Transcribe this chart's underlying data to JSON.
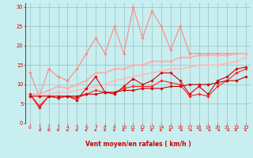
{
  "bg_color": "#c8eef0",
  "grid_color": "#a0c8c8",
  "xlabel": "Vent moyen/en rafales ( km/h )",
  "xlabel_color": "#cc0000",
  "tick_color": "#cc0000",
  "ylim": [
    0,
    31
  ],
  "yticks": [
    0,
    5,
    10,
    15,
    20,
    25,
    30
  ],
  "xlim": [
    -0.5,
    23.5
  ],
  "xticks": [
    0,
    1,
    2,
    3,
    4,
    5,
    6,
    7,
    8,
    9,
    10,
    11,
    12,
    13,
    14,
    15,
    16,
    17,
    18,
    19,
    20,
    21,
    22,
    23
  ],
  "series": [
    {
      "label": "line_pink_volatile",
      "color": "#ff8888",
      "linewidth": 0.8,
      "marker": "D",
      "markersize": 1.8,
      "y": [
        13,
        7,
        14,
        12,
        11,
        14,
        18,
        22,
        18,
        25,
        18,
        30,
        22,
        29,
        25,
        19,
        25,
        18,
        18,
        18,
        18,
        18,
        18,
        18
      ]
    },
    {
      "label": "line_salmon_upper",
      "color": "#ffaaaa",
      "linewidth": 1.2,
      "marker": "D",
      "markersize": 1.8,
      "y": [
        7.5,
        7.5,
        8.5,
        9.5,
        9,
        10,
        11,
        13,
        13,
        14,
        14,
        15,
        15,
        16,
        16,
        16,
        17,
        17,
        17.5,
        17.5,
        17.5,
        17.5,
        18,
        18
      ]
    },
    {
      "label": "line_pink_gradual",
      "color": "#ffbbbb",
      "linewidth": 1.2,
      "marker": "D",
      "markersize": 1.8,
      "y": [
        7,
        7,
        7.5,
        8,
        8,
        8.5,
        9,
        9.5,
        10,
        11,
        11.5,
        12,
        12.5,
        13,
        13.5,
        14,
        14,
        14.5,
        15,
        15,
        15,
        15.5,
        16,
        17
      ]
    },
    {
      "label": "line_red_volatile",
      "color": "#dd0000",
      "linewidth": 0.8,
      "marker": "D",
      "markersize": 1.8,
      "y": [
        7.5,
        4,
        7,
        6.5,
        7,
        6,
        9,
        12,
        8,
        7.5,
        9.5,
        11.5,
        10,
        11,
        13,
        13,
        11,
        7.5,
        9.5,
        7.5,
        11,
        12,
        14,
        14.5
      ]
    },
    {
      "label": "line_red_smooth",
      "color": "#ff2222",
      "linewidth": 0.8,
      "marker": "D",
      "markersize": 1.8,
      "y": [
        7.5,
        4.5,
        7,
        6.5,
        7,
        6.5,
        7.5,
        8.5,
        8,
        8,
        9,
        9.5,
        9.5,
        9.5,
        11,
        10.5,
        10,
        7,
        7.5,
        7,
        9.5,
        11,
        13,
        14
      ]
    },
    {
      "label": "line_red_base",
      "color": "#cc0000",
      "linewidth": 0.8,
      "marker": "D",
      "markersize": 1.8,
      "y": [
        7,
        7,
        7,
        7,
        7,
        7,
        7.5,
        7.5,
        8,
        8,
        8.5,
        8.5,
        9,
        9,
        9,
        9.5,
        9.5,
        10,
        10,
        10,
        10.5,
        11,
        11,
        12
      ]
    }
  ],
  "arrow_angles": [
    180,
    200,
    210,
    215,
    220,
    220,
    225,
    225,
    225,
    230,
    235,
    235,
    235,
    240,
    240,
    245,
    250,
    255,
    260,
    265,
    270,
    280,
    295,
    310
  ]
}
